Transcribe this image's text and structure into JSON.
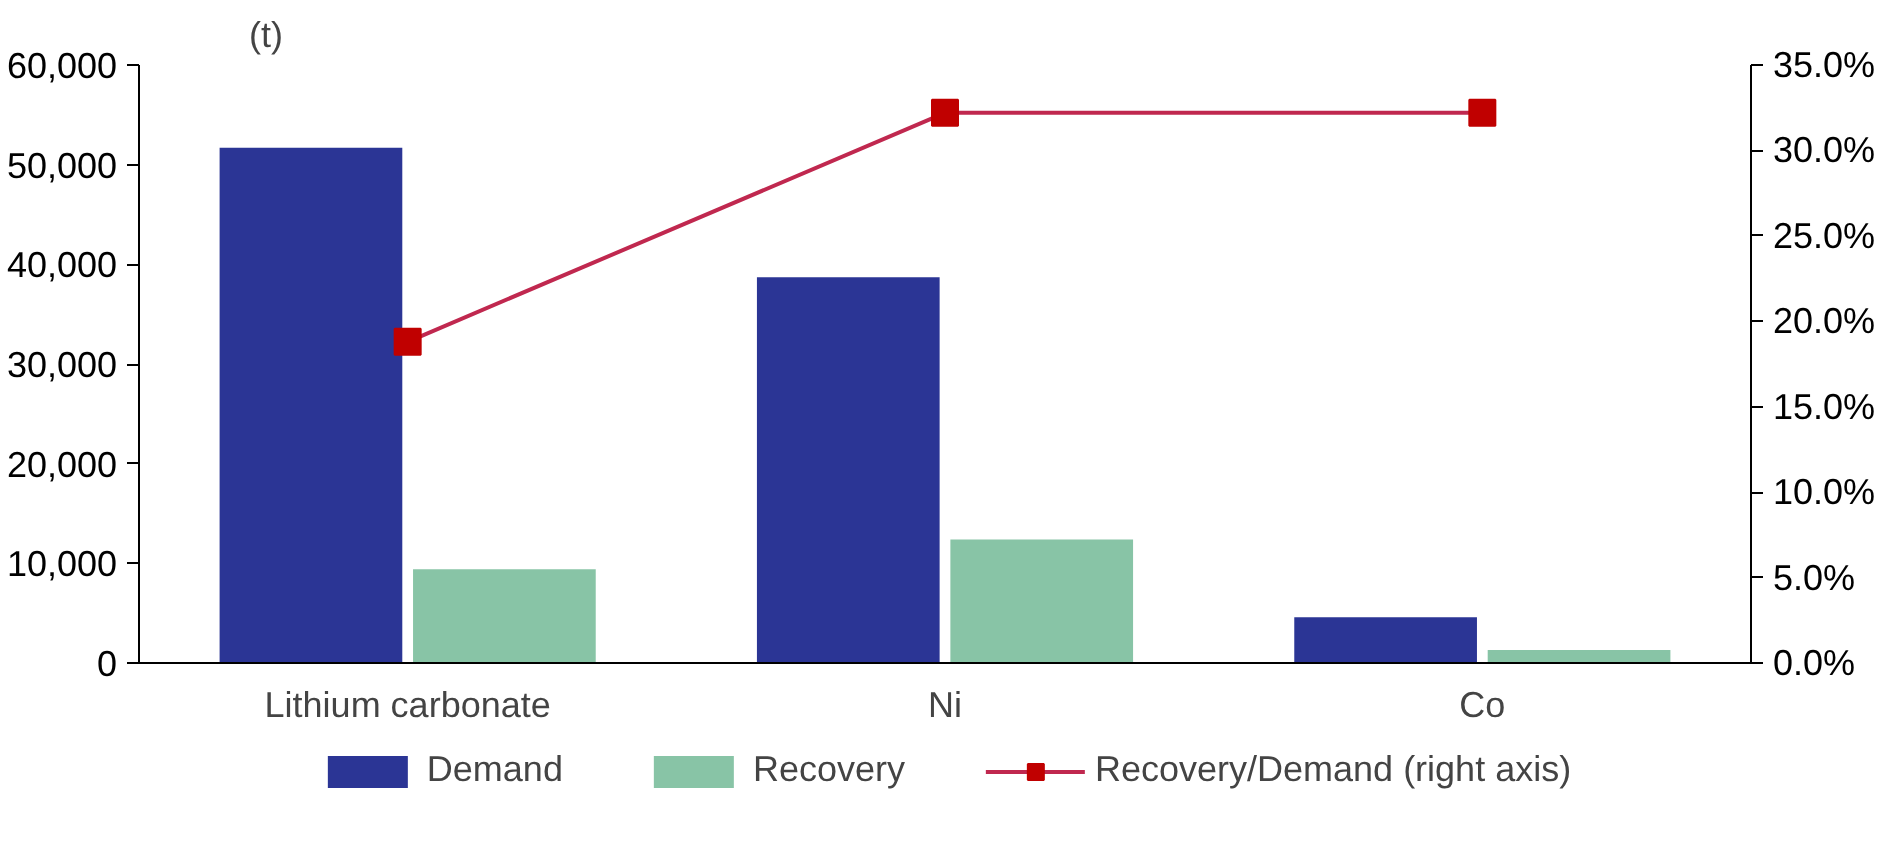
{
  "chart_data": {
    "type": "bar",
    "ylabel": "(t)",
    "categories": [
      "Lithium carbonate",
      "Ni",
      "Co"
    ],
    "series": [
      {
        "name": "Demand",
        "color": "#2b3595",
        "values": [
          51700,
          38700,
          4600
        ]
      },
      {
        "name": "Recovery",
        "color": "#88c4a6",
        "values": [
          9400,
          12400,
          1300
        ]
      },
      {
        "name": "Recovery/Demand (right axis)",
        "type": "line",
        "axis": "y2",
        "color": "#c0284f",
        "marker": "square",
        "values": [
          18.8,
          32.2,
          32.2
        ]
      }
    ],
    "ylim": [
      0,
      60000
    ],
    "yticks": [
      {
        "value": 0,
        "label": "0"
      },
      {
        "value": 10000,
        "label": "10,000"
      },
      {
        "value": 20000,
        "label": "20,000"
      },
      {
        "value": 30000,
        "label": "30,000"
      },
      {
        "value": 40000,
        "label": "40,000"
      },
      {
        "value": 50000,
        "label": "50,000"
      },
      {
        "value": 60000,
        "label": "60,000"
      }
    ],
    "y2lim": [
      0,
      35
    ],
    "y2ticks": [
      {
        "value": 0,
        "label": "0.0%"
      },
      {
        "value": 5,
        "label": "5.0%"
      },
      {
        "value": 10,
        "label": "10.0%"
      },
      {
        "value": 15,
        "label": "15.0%"
      },
      {
        "value": 20,
        "label": "20.0%"
      },
      {
        "value": 25,
        "label": "25.0%"
      },
      {
        "value": 30,
        "label": "30.0%"
      },
      {
        "value": 35,
        "label": "35.0%"
      }
    ],
    "grid": false,
    "legend": "bottom"
  }
}
